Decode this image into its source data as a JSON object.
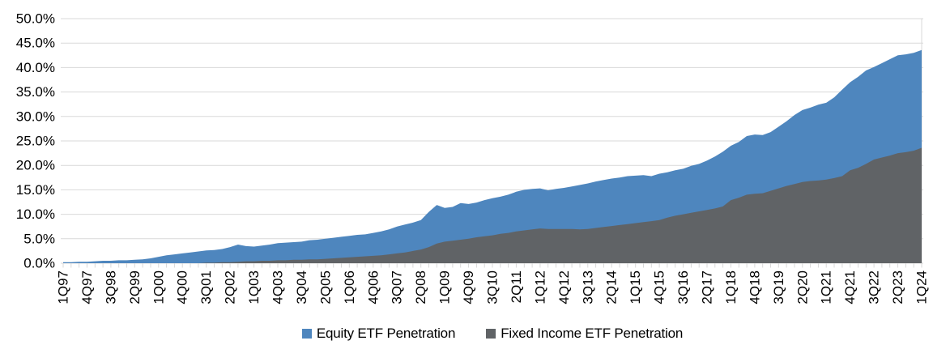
{
  "chart_data": {
    "type": "area",
    "stacked": false,
    "title": "",
    "xlabel": "",
    "ylabel": "",
    "ylim": [
      0,
      50
    ],
    "grid": "horizontal",
    "legend_position": "bottom",
    "x_label_every": 3,
    "y_ticks": [
      "0.0%",
      "5.0%",
      "10.0%",
      "15.0%",
      "20.0%",
      "25.0%",
      "30.0%",
      "35.0%",
      "40.0%",
      "45.0%",
      "50.0%"
    ],
    "x": [
      "1Q97",
      "2Q97",
      "3Q97",
      "4Q97",
      "1Q98",
      "2Q98",
      "3Q98",
      "4Q98",
      "1Q99",
      "2Q99",
      "3Q99",
      "4Q99",
      "1Q00",
      "2Q00",
      "3Q00",
      "4Q00",
      "1Q01",
      "2Q01",
      "3Q01",
      "4Q01",
      "1Q02",
      "2Q02",
      "3Q02",
      "4Q02",
      "1Q03",
      "2Q03",
      "3Q03",
      "4Q03",
      "1Q04",
      "2Q04",
      "3Q04",
      "4Q04",
      "1Q05",
      "2Q05",
      "3Q05",
      "4Q05",
      "1Q06",
      "2Q06",
      "3Q06",
      "4Q06",
      "1Q07",
      "2Q07",
      "3Q07",
      "4Q07",
      "1Q08",
      "2Q08",
      "3Q08",
      "4Q08",
      "1Q09",
      "2Q09",
      "3Q09",
      "4Q09",
      "1Q10",
      "2Q10",
      "3Q10",
      "4Q10",
      "1Q11",
      "2Q11",
      "3Q11",
      "4Q11",
      "1Q12",
      "2Q12",
      "3Q12",
      "4Q12",
      "1Q13",
      "2Q13",
      "3Q13",
      "4Q13",
      "1Q14",
      "2Q14",
      "3Q14",
      "4Q14",
      "1Q15",
      "2Q15",
      "3Q15",
      "4Q15",
      "1Q16",
      "2Q16",
      "3Q16",
      "4Q16",
      "1Q17",
      "2Q17",
      "3Q17",
      "4Q17",
      "1Q18",
      "2Q18",
      "3Q18",
      "4Q18",
      "1Q19",
      "2Q19",
      "3Q19",
      "4Q19",
      "1Q20",
      "2Q20",
      "3Q20",
      "4Q20",
      "1Q21",
      "2Q21",
      "3Q21",
      "4Q21",
      "1Q22",
      "2Q22",
      "3Q22",
      "4Q22",
      "1Q23",
      "2Q23",
      "3Q23",
      "4Q23",
      "1Q24"
    ],
    "series": [
      {
        "name": "Equity ETF Penetration",
        "color": "#4E86BE",
        "values": [
          0.2,
          0.2,
          0.3,
          0.3,
          0.4,
          0.5,
          0.5,
          0.6,
          0.6,
          0.7,
          0.8,
          1.0,
          1.3,
          1.6,
          1.8,
          2.0,
          2.2,
          2.4,
          2.6,
          2.7,
          2.9,
          3.3,
          3.8,
          3.5,
          3.4,
          3.6,
          3.8,
          4.1,
          4.2,
          4.3,
          4.4,
          4.7,
          4.8,
          5.0,
          5.2,
          5.4,
          5.6,
          5.8,
          5.9,
          6.2,
          6.5,
          6.9,
          7.5,
          7.9,
          8.3,
          8.8,
          10.5,
          11.9,
          11.3,
          11.5,
          12.3,
          12.1,
          12.4,
          12.9,
          13.3,
          13.6,
          14.0,
          14.6,
          15.0,
          15.2,
          15.3,
          14.9,
          15.2,
          15.4,
          15.7,
          16.0,
          16.3,
          16.7,
          17.0,
          17.3,
          17.5,
          17.8,
          17.9,
          18.0,
          17.8,
          18.3,
          18.6,
          19.0,
          19.3,
          19.9,
          20.3,
          21.0,
          21.8,
          22.8,
          24.0,
          24.8,
          26.0,
          26.3,
          26.2,
          26.8,
          27.9,
          29.0,
          30.3,
          31.3,
          31.8,
          32.4,
          32.8,
          33.9,
          35.5,
          37.0,
          38.1,
          39.4,
          40.1,
          40.9,
          41.7,
          42.5,
          42.7,
          43.0,
          43.6
        ]
      },
      {
        "name": "Fixed Income ETF Penetration",
        "color": "#606366",
        "values": [
          0,
          0,
          0,
          0,
          0,
          0,
          0,
          0,
          0,
          0,
          0,
          0,
          0,
          0,
          0,
          0,
          0,
          0,
          0.1,
          0.1,
          0.2,
          0.2,
          0.3,
          0.4,
          0.4,
          0.5,
          0.5,
          0.6,
          0.6,
          0.7,
          0.7,
          0.8,
          0.8,
          0.9,
          1.0,
          1.1,
          1.2,
          1.3,
          1.4,
          1.5,
          1.6,
          1.8,
          2.0,
          2.2,
          2.5,
          2.8,
          3.3,
          4.0,
          4.4,
          4.6,
          4.8,
          5.0,
          5.3,
          5.5,
          5.7,
          6.0,
          6.2,
          6.5,
          6.7,
          6.9,
          7.1,
          7.0,
          7.0,
          7.0,
          7.0,
          6.9,
          7.0,
          7.2,
          7.4,
          7.6,
          7.8,
          8.0,
          8.2,
          8.4,
          8.6,
          8.8,
          9.3,
          9.7,
          10.0,
          10.3,
          10.6,
          10.9,
          11.2,
          11.6,
          12.9,
          13.4,
          14.0,
          14.2,
          14.3,
          14.8,
          15.3,
          15.8,
          16.2,
          16.6,
          16.8,
          16.9,
          17.1,
          17.4,
          17.8,
          19.0,
          19.5,
          20.3,
          21.2,
          21.6,
          22.0,
          22.5,
          22.7,
          23.0,
          23.6
        ]
      }
    ],
    "colors": {
      "gridline": "#D9D9D9",
      "tick": "#D9D9D9",
      "axis_text": "#000000",
      "background": "#FFFFFF"
    }
  }
}
